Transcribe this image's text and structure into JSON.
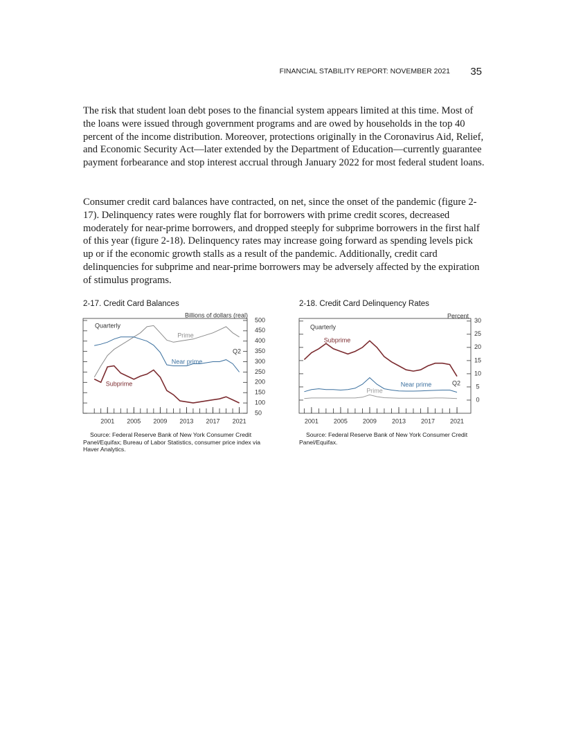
{
  "header": {
    "title": "FINANCIAL STABILITY REPORT: NOVEMBER 2021",
    "page": "35"
  },
  "paragraphs": [
    "The risk that student loan debt poses to the financial system appears limited at this time. Most of the loans were issued through government programs and are owed by households in the top 40 percent of the income distribution. Moreover, protections originally in the Coronavirus Aid, Relief, and Economic Security Act—later extended by the Department of Education—currently guarantee payment forbearance and stop interest accrual through January 2022 for most federal student loans.",
    "Consumer credit card balances have contracted, on net, since the onset of the pandemic (figure 2-17). Delinquency rates were roughly flat for borrowers with prime credit scores, decreased moderately for near-prime borrowers, and dropped steeply for subprime borrowers in the first half of this year (figure 2-18). Delinquency rates may increase going forward as spending levels pick up or if the economic growth stalls as a result of the pandemic. Additionally, credit card delinquencies for subprime and near-prime borrowers may be adversely affected by the expiration of stimulus programs."
  ],
  "chart_data": [
    {
      "type": "line",
      "title": "2-17. Credit Card Balances",
      "y_axis_label": "Billions of dollars (real)",
      "annotations": [
        "Quarterly",
        "Q2"
      ],
      "source": "Source: Federal Reserve Bank of New York Consumer Credit Panel/Equifax; Bureau of Labor Statistics, consumer price index via Haver Analytics.",
      "x": [
        1999,
        2000,
        2001,
        2002,
        2003,
        2004,
        2005,
        2006,
        2007,
        2008,
        2009,
        2010,
        2011,
        2012,
        2013,
        2014,
        2015,
        2016,
        2017,
        2018,
        2019,
        2020,
        2021
      ],
      "series": [
        {
          "name": "Prime",
          "color": "#8c8c8c",
          "values": [
            225,
            280,
            330,
            360,
            380,
            400,
            420,
            440,
            470,
            475,
            440,
            405,
            395,
            400,
            405,
            410,
            420,
            430,
            440,
            455,
            470,
            440,
            420
          ]
        },
        {
          "name": "Near prime",
          "color": "#3a6f9e",
          "values": [
            378,
            385,
            395,
            410,
            420,
            420,
            420,
            410,
            400,
            380,
            345,
            285,
            280,
            280,
            280,
            290,
            290,
            295,
            300,
            300,
            310,
            290,
            250
          ]
        },
        {
          "name": "Subprime",
          "color": "#7b2b2f",
          "values": [
            216,
            200,
            275,
            280,
            245,
            230,
            215,
            230,
            240,
            260,
            225,
            160,
            140,
            110,
            105,
            100,
            105,
            110,
            115,
            120,
            130,
            115,
            100
          ]
        }
      ],
      "xlim": [
        1997.3,
        2022.2
      ],
      "ylim": [
        50,
        510
      ],
      "xticks": [
        2001,
        2005,
        2009,
        2013,
        2017,
        2021
      ],
      "yticks": [
        50,
        100,
        150,
        200,
        250,
        300,
        350,
        400,
        450,
        500
      ]
    },
    {
      "type": "line",
      "title": "2-18. Credit Card Delinquency Rates",
      "y_axis_label": "Percent",
      "annotations": [
        "Quarterly",
        "Q2"
      ],
      "source": "Source: Federal Reserve Bank of New York Consumer Credit Panel/Equifax.",
      "x": [
        2000,
        2001,
        2002,
        2003,
        2004,
        2005,
        2006,
        2007,
        2008,
        2009,
        2010,
        2011,
        2012,
        2013,
        2014,
        2015,
        2016,
        2017,
        2018,
        2019,
        2020,
        2021
      ],
      "series": [
        {
          "name": "Subprime",
          "color": "#7b2b2f",
          "values": [
            15.4,
            18,
            19.5,
            21.5,
            19.5,
            18.5,
            17.5,
            18.5,
            20,
            22.5,
            20,
            16.5,
            14.5,
            13,
            11.5,
            11,
            11.5,
            13,
            14,
            14,
            13.5,
            9
          ]
        },
        {
          "name": "Near prime",
          "color": "#3a6f9e",
          "values": [
            3.2,
            4,
            4.3,
            4,
            4,
            3.8,
            4,
            4.5,
            6,
            8.5,
            6,
            4.3,
            3.8,
            3.5,
            3.4,
            3.4,
            3.5,
            3.6,
            3.7,
            3.8,
            3.8,
            3
          ]
        },
        {
          "name": "Prime",
          "color": "#9a9a9a",
          "values": [
            0.6,
            0.8,
            0.8,
            0.8,
            0.8,
            0.8,
            0.8,
            0.8,
            1.1,
            2,
            1.3,
            0.9,
            0.8,
            0.7,
            0.7,
            0.7,
            0.7,
            0.7,
            0.8,
            0.8,
            0.7,
            0.6
          ]
        }
      ],
      "xlim": [
        1999.3,
        2022.9
      ],
      "ylim": [
        -5,
        31
      ],
      "xticks": [
        2001,
        2005,
        2009,
        2013,
        2017,
        2021
      ],
      "yticks": [
        0,
        5,
        10,
        15,
        20,
        25,
        30
      ]
    }
  ]
}
